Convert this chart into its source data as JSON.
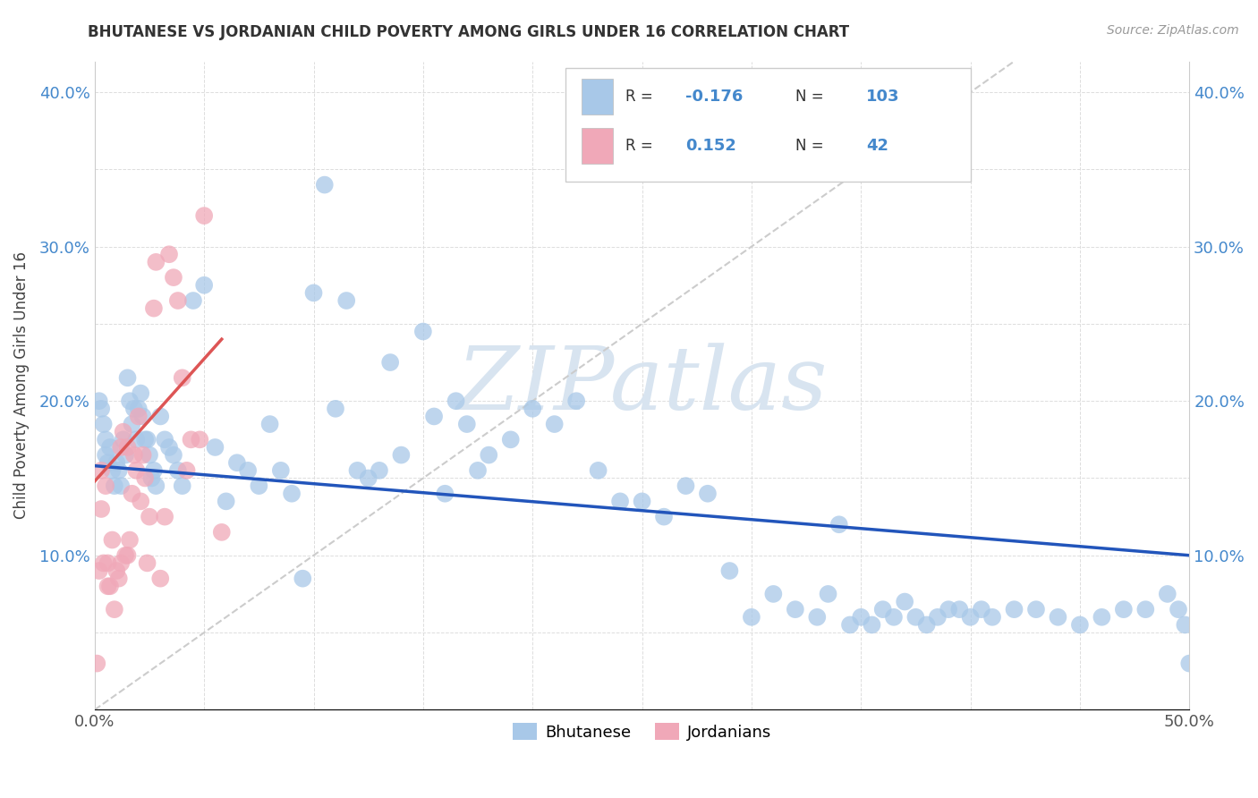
{
  "title": "BHUTANESE VS JORDANIAN CHILD POVERTY AMONG GIRLS UNDER 16 CORRELATION CHART",
  "source": "Source: ZipAtlas.com",
  "ylabel": "Child Poverty Among Girls Under 16",
  "xlim": [
    0.0,
    0.5
  ],
  "ylim": [
    0.0,
    0.42
  ],
  "xticks": [
    0.0,
    0.05,
    0.1,
    0.15,
    0.2,
    0.25,
    0.3,
    0.35,
    0.4,
    0.45,
    0.5
  ],
  "yticks": [
    0.0,
    0.05,
    0.1,
    0.15,
    0.2,
    0.25,
    0.3,
    0.35,
    0.4
  ],
  "blue_color": "#A8C8E8",
  "pink_color": "#F0A8B8",
  "blue_line_color": "#2255BB",
  "pink_line_color": "#DD5555",
  "ref_line_color": "#CCCCCC",
  "tick_color": "#4488CC",
  "watermark_color": "#D8E4F0",
  "watermark": "ZIPatlas",
  "blue_scatter_x": [
    0.002,
    0.003,
    0.004,
    0.005,
    0.005,
    0.006,
    0.007,
    0.008,
    0.009,
    0.01,
    0.011,
    0.012,
    0.013,
    0.014,
    0.015,
    0.016,
    0.017,
    0.018,
    0.019,
    0.02,
    0.021,
    0.022,
    0.023,
    0.024,
    0.025,
    0.026,
    0.027,
    0.028,
    0.03,
    0.032,
    0.034,
    0.036,
    0.038,
    0.04,
    0.045,
    0.05,
    0.055,
    0.06,
    0.065,
    0.07,
    0.075,
    0.08,
    0.085,
    0.09,
    0.095,
    0.1,
    0.105,
    0.11,
    0.115,
    0.12,
    0.125,
    0.13,
    0.135,
    0.14,
    0.15,
    0.155,
    0.16,
    0.165,
    0.17,
    0.175,
    0.18,
    0.19,
    0.2,
    0.21,
    0.22,
    0.23,
    0.24,
    0.25,
    0.26,
    0.27,
    0.28,
    0.29,
    0.3,
    0.31,
    0.32,
    0.33,
    0.34,
    0.35,
    0.36,
    0.37,
    0.38,
    0.39,
    0.4,
    0.41,
    0.42,
    0.43,
    0.44,
    0.45,
    0.46,
    0.47,
    0.48,
    0.49,
    0.495,
    0.498,
    0.5,
    0.335,
    0.345,
    0.355,
    0.365,
    0.375,
    0.385,
    0.395,
    0.405
  ],
  "blue_scatter_y": [
    0.2,
    0.195,
    0.185,
    0.175,
    0.165,
    0.16,
    0.17,
    0.155,
    0.145,
    0.16,
    0.155,
    0.145,
    0.175,
    0.165,
    0.215,
    0.2,
    0.185,
    0.195,
    0.175,
    0.195,
    0.205,
    0.19,
    0.175,
    0.175,
    0.165,
    0.15,
    0.155,
    0.145,
    0.19,
    0.175,
    0.17,
    0.165,
    0.155,
    0.145,
    0.265,
    0.275,
    0.17,
    0.135,
    0.16,
    0.155,
    0.145,
    0.185,
    0.155,
    0.14,
    0.085,
    0.27,
    0.34,
    0.195,
    0.265,
    0.155,
    0.15,
    0.155,
    0.225,
    0.165,
    0.245,
    0.19,
    0.14,
    0.2,
    0.185,
    0.155,
    0.165,
    0.175,
    0.195,
    0.185,
    0.2,
    0.155,
    0.135,
    0.135,
    0.125,
    0.145,
    0.14,
    0.09,
    0.06,
    0.075,
    0.065,
    0.06,
    0.12,
    0.06,
    0.065,
    0.07,
    0.055,
    0.065,
    0.06,
    0.06,
    0.065,
    0.065,
    0.06,
    0.055,
    0.06,
    0.065,
    0.065,
    0.075,
    0.065,
    0.055,
    0.03,
    0.075,
    0.055,
    0.055,
    0.06,
    0.06,
    0.06,
    0.065,
    0.065
  ],
  "pink_scatter_x": [
    0.001,
    0.002,
    0.003,
    0.003,
    0.004,
    0.005,
    0.006,
    0.006,
    0.007,
    0.008,
    0.009,
    0.01,
    0.011,
    0.012,
    0.012,
    0.013,
    0.014,
    0.015,
    0.015,
    0.016,
    0.017,
    0.018,
    0.019,
    0.02,
    0.021,
    0.022,
    0.023,
    0.024,
    0.025,
    0.027,
    0.028,
    0.03,
    0.032,
    0.034,
    0.036,
    0.038,
    0.04,
    0.042,
    0.044,
    0.048,
    0.05,
    0.058
  ],
  "pink_scatter_y": [
    0.03,
    0.09,
    0.155,
    0.13,
    0.095,
    0.145,
    0.08,
    0.095,
    0.08,
    0.11,
    0.065,
    0.09,
    0.085,
    0.17,
    0.095,
    0.18,
    0.1,
    0.17,
    0.1,
    0.11,
    0.14,
    0.165,
    0.155,
    0.19,
    0.135,
    0.165,
    0.15,
    0.095,
    0.125,
    0.26,
    0.29,
    0.085,
    0.125,
    0.295,
    0.28,
    0.265,
    0.215,
    0.155,
    0.175,
    0.175,
    0.32,
    0.115
  ],
  "blue_trend_x": [
    0.0,
    0.5
  ],
  "blue_trend_y": [
    0.158,
    0.1
  ],
  "pink_trend_x": [
    0.0,
    0.058
  ],
  "pink_trend_y": [
    0.148,
    0.24
  ],
  "ref_line_x": [
    0.0,
    0.42
  ],
  "ref_line_y": [
    0.0,
    0.42
  ]
}
